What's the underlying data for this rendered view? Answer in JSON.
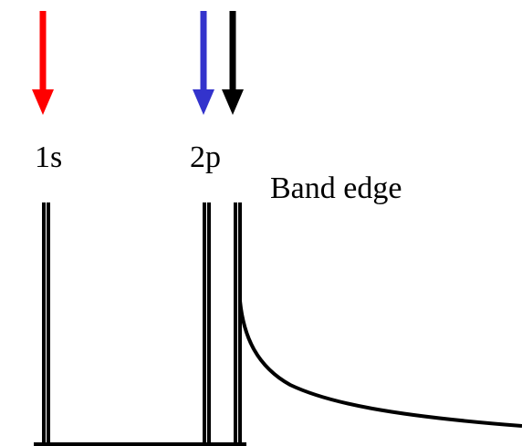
{
  "labels": {
    "level_1s": "1s",
    "level_2p": "2p",
    "band_edge": "Band edge"
  },
  "arrows": [
    {
      "name": "arrow-1s",
      "color": "#ff0000"
    },
    {
      "name": "arrow-2p",
      "color": "#3333cc"
    },
    {
      "name": "arrow-band-edge",
      "color": "#000000"
    }
  ],
  "line_color": "#000000"
}
